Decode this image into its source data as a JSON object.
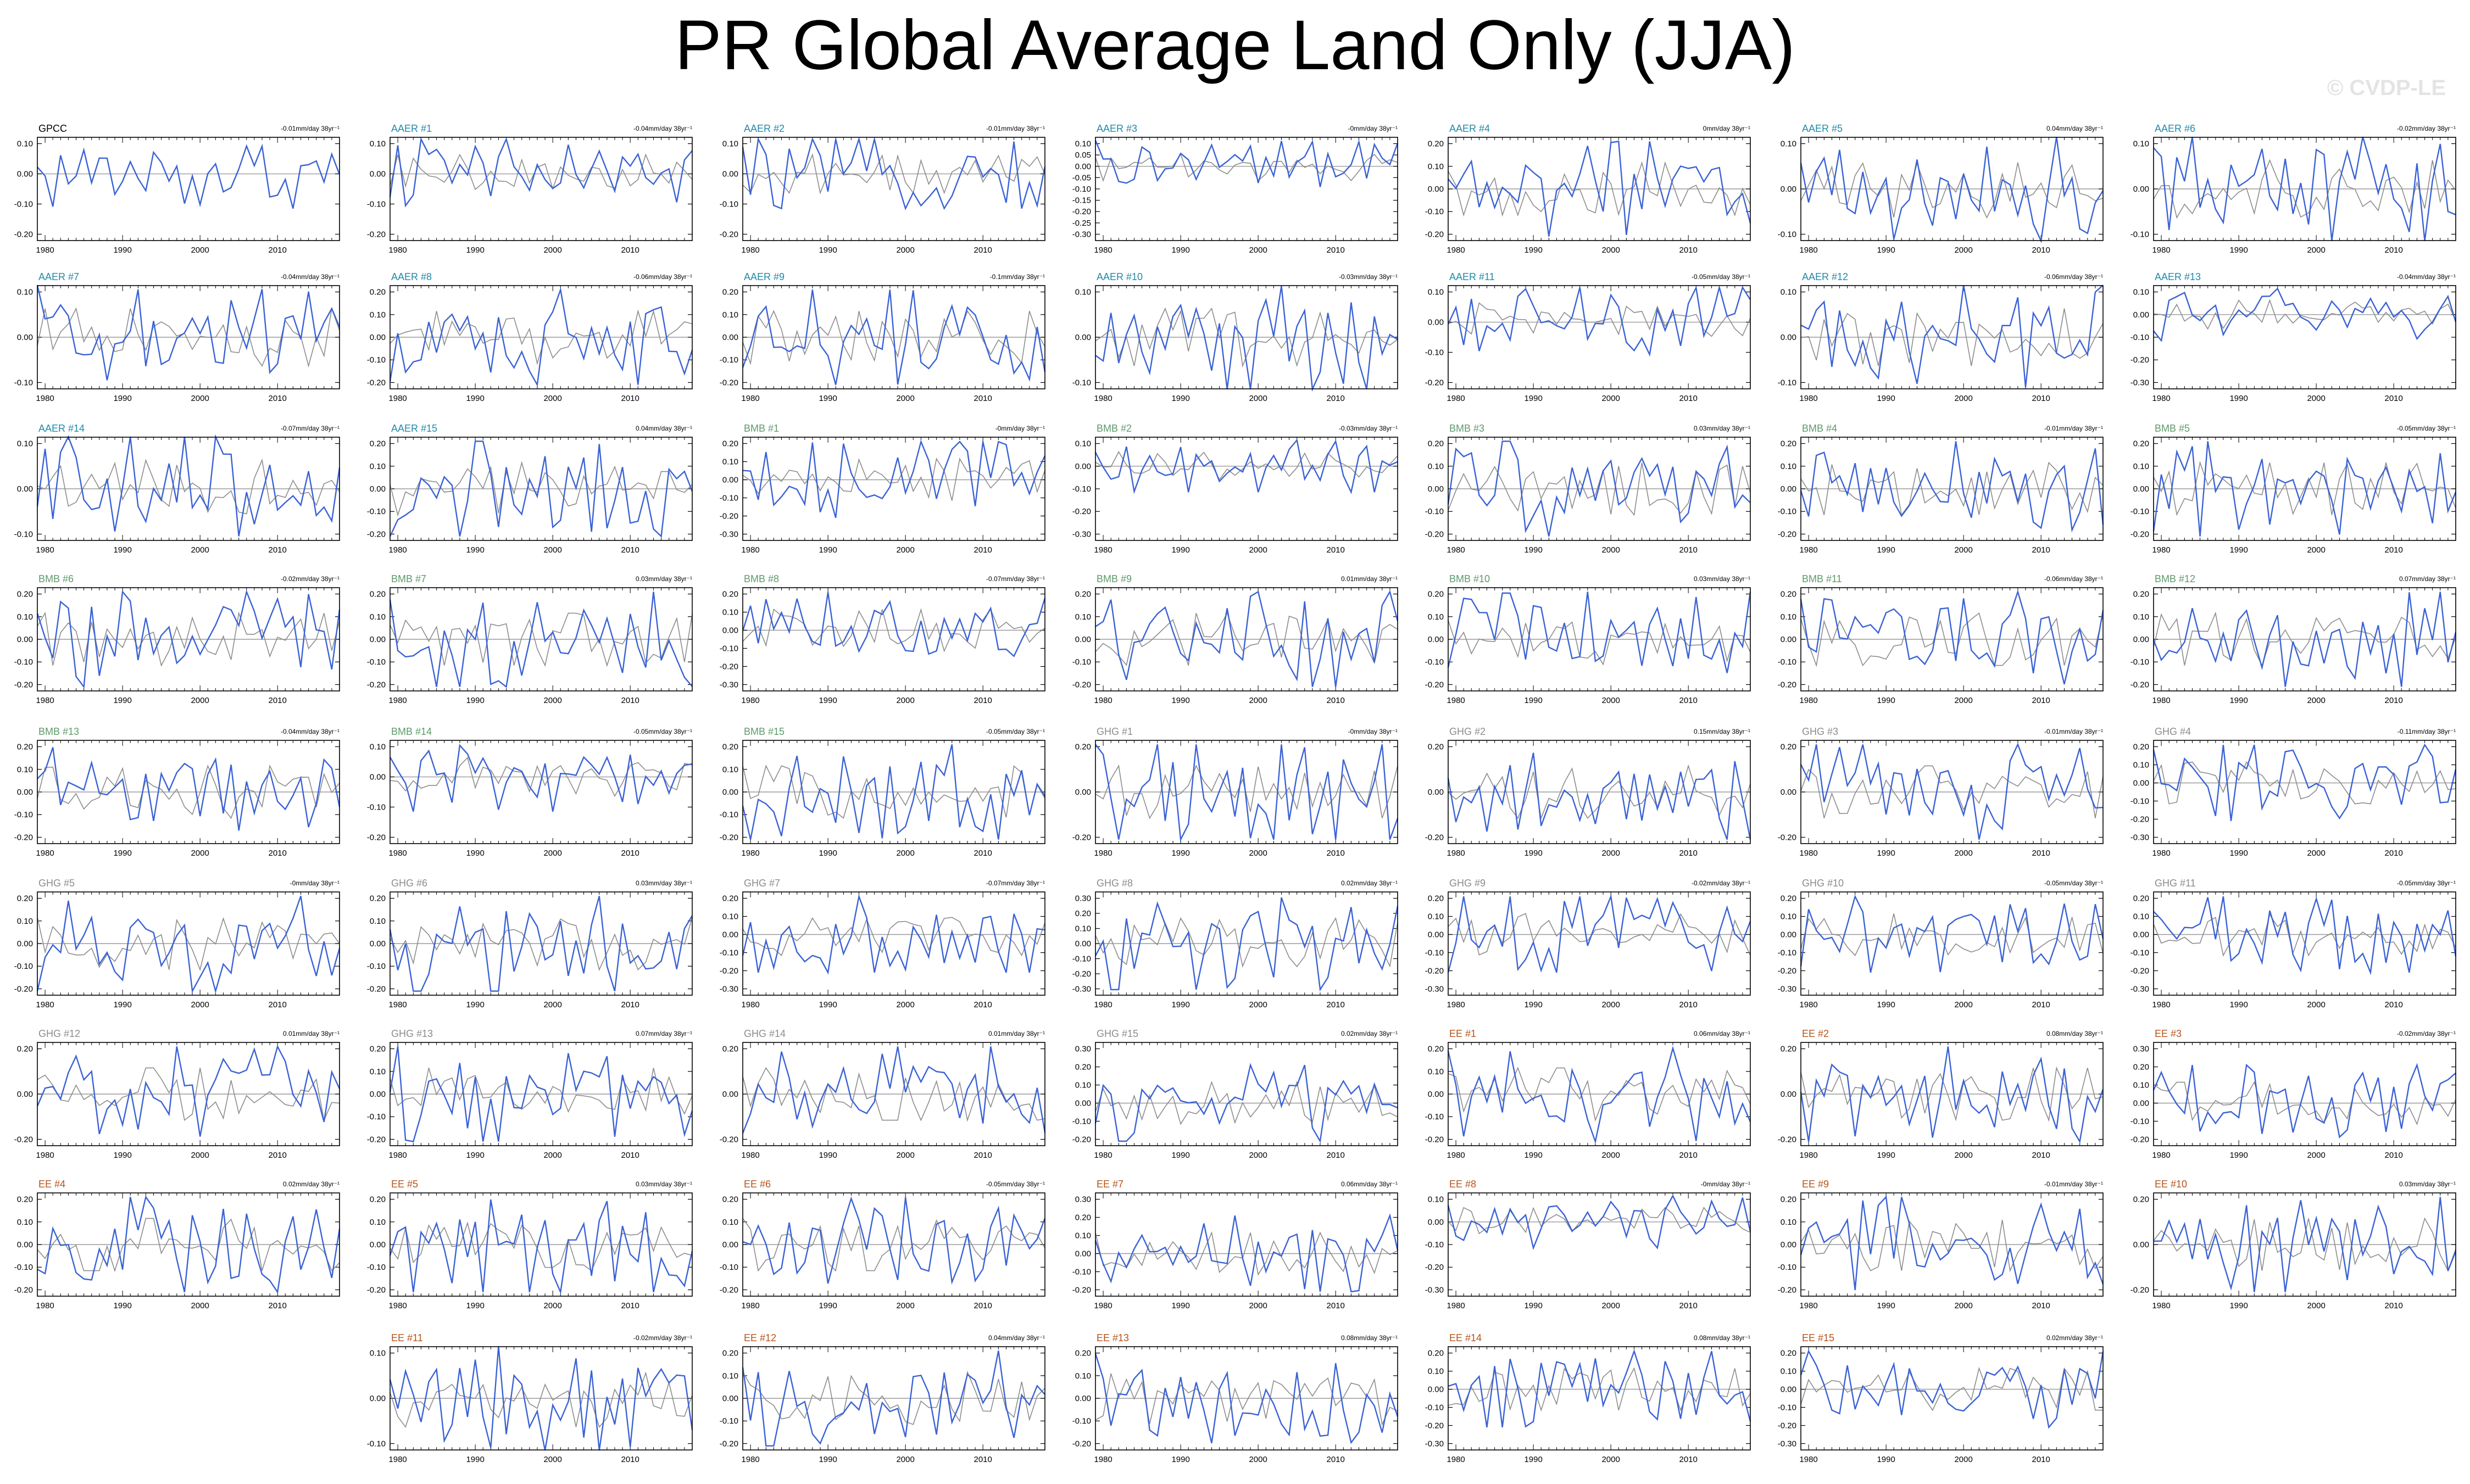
{
  "title": "PR Global Average Land Only (JJA)",
  "watermark": "© CVDP-LE",
  "colors": {
    "obs_line": "#3a62d6",
    "ens_mean_line": "#8c8c8c",
    "GPCC": "#000000",
    "AAER": "#1f8aaa",
    "BMB": "#5e9a6a",
    "GHG": "#8c8c8c",
    "EE": "#b5541c"
  },
  "chart_data": {
    "type": "line",
    "x_ticks": [
      1980,
      1990,
      2000,
      2010
    ],
    "x_range": [
      1979,
      2018
    ],
    "panels": [
      {
        "label": "GPCC",
        "group": "GPCC",
        "trend": "-0.01mm/day 38yr⁻¹",
        "yticks": [
          0.1,
          0,
          -0.1,
          -0.2
        ],
        "show_ens": false
      },
      {
        "label": "AAER #1",
        "group": "AAER",
        "trend": "-0.04mm/day 38yr⁻¹",
        "yticks": [
          0.1,
          0,
          -0.1,
          -0.2
        ],
        "show_ens": true
      },
      {
        "label": "AAER #2",
        "group": "AAER",
        "trend": "-0.01mm/day 38yr⁻¹",
        "yticks": [
          0.1,
          0,
          -0.1,
          -0.2
        ],
        "show_ens": true
      },
      {
        "label": "AAER #3",
        "group": "AAER",
        "trend": "-0mm/day 38yr⁻¹",
        "yticks": [
          0.1,
          0.05,
          0,
          -0.05,
          -0.1,
          -0.15,
          -0.2,
          -0.25,
          -0.3
        ],
        "show_ens": true
      },
      {
        "label": "AAER #4",
        "group": "AAER",
        "trend": "0mm/day 38yr⁻¹",
        "yticks": [
          0.2,
          0.1,
          0,
          -0.1,
          -0.2
        ],
        "show_ens": true
      },
      {
        "label": "AAER #5",
        "group": "AAER",
        "trend": "0.04mm/day 38yr⁻¹",
        "yticks": [
          0.1,
          0,
          -0.1
        ],
        "show_ens": true
      },
      {
        "label": "AAER #6",
        "group": "AAER",
        "trend": "-0.02mm/day 38yr⁻¹",
        "yticks": [
          0.1,
          0,
          -0.1
        ],
        "show_ens": true
      },
      {
        "label": "AAER #7",
        "group": "AAER",
        "trend": "-0.04mm/day 38yr⁻¹",
        "yticks": [
          0.1,
          0,
          -0.1
        ],
        "show_ens": true
      },
      {
        "label": "AAER #8",
        "group": "AAER",
        "trend": "-0.06mm/day 38yr⁻¹",
        "yticks": [
          0.2,
          0.1,
          0,
          -0.1,
          -0.2
        ],
        "show_ens": true
      },
      {
        "label": "AAER #9",
        "group": "AAER",
        "trend": "-0.1mm/day 38yr⁻¹",
        "yticks": [
          0.2,
          0.1,
          0,
          -0.1,
          -0.2
        ],
        "show_ens": true
      },
      {
        "label": "AAER #10",
        "group": "AAER",
        "trend": "-0.03mm/day 38yr⁻¹",
        "yticks": [
          0.1,
          0,
          -0.1
        ],
        "show_ens": true
      },
      {
        "label": "AAER #11",
        "group": "AAER",
        "trend": "-0.05mm/day 38yr⁻¹",
        "yticks": [
          0.1,
          0,
          -0.1,
          -0.2
        ],
        "show_ens": true
      },
      {
        "label": "AAER #12",
        "group": "AAER",
        "trend": "-0.06mm/day 38yr⁻¹",
        "yticks": [
          0.1,
          0,
          -0.1
        ],
        "show_ens": true
      },
      {
        "label": "AAER #13",
        "group": "AAER",
        "trend": "-0.04mm/day 38yr⁻¹",
        "yticks": [
          0.1,
          0,
          -0.1,
          -0.2,
          -0.3
        ],
        "show_ens": true
      },
      {
        "label": "AAER #14",
        "group": "AAER",
        "trend": "-0.07mm/day 38yr⁻¹",
        "yticks": [
          0.1,
          0,
          -0.1
        ],
        "show_ens": true
      },
      {
        "label": "AAER #15",
        "group": "AAER",
        "trend": "0.04mm/day 38yr⁻¹",
        "yticks": [
          0.2,
          0.1,
          0,
          -0.1,
          -0.2
        ],
        "show_ens": true
      },
      {
        "label": "BMB #1",
        "group": "BMB",
        "trend": "-0mm/day 38yr⁻¹",
        "yticks": [
          0.2,
          0.1,
          0,
          -0.1,
          -0.2,
          -0.3
        ],
        "show_ens": true
      },
      {
        "label": "BMB #2",
        "group": "BMB",
        "trend": "-0.03mm/day 38yr⁻¹",
        "yticks": [
          0.1,
          0,
          -0.1,
          -0.2,
          -0.3
        ],
        "show_ens": true
      },
      {
        "label": "BMB #3",
        "group": "BMB",
        "trend": "0.03mm/day 38yr⁻¹",
        "yticks": [
          0.2,
          0.1,
          0,
          -0.1,
          -0.2
        ],
        "show_ens": true
      },
      {
        "label": "BMB #4",
        "group": "BMB",
        "trend": "-0.01mm/day 38yr⁻¹",
        "yticks": [
          0.2,
          0.1,
          0,
          -0.1,
          -0.2
        ],
        "show_ens": true
      },
      {
        "label": "BMB #5",
        "group": "BMB",
        "trend": "-0.05mm/day 38yr⁻¹",
        "yticks": [
          0.2,
          0.1,
          0,
          -0.1,
          -0.2
        ],
        "show_ens": true
      },
      {
        "label": "BMB #6",
        "group": "BMB",
        "trend": "-0.02mm/day 38yr⁻¹",
        "yticks": [
          0.2,
          0.1,
          0,
          -0.1,
          -0.2
        ],
        "show_ens": true
      },
      {
        "label": "BMB #7",
        "group": "BMB",
        "trend": "0.03mm/day 38yr⁻¹",
        "yticks": [
          0.2,
          0.1,
          0,
          -0.1,
          -0.2
        ],
        "show_ens": true
      },
      {
        "label": "BMB #8",
        "group": "BMB",
        "trend": "-0.07mm/day 38yr⁻¹",
        "yticks": [
          0.2,
          0.1,
          0,
          -0.1,
          -0.2,
          -0.3
        ],
        "show_ens": true
      },
      {
        "label": "BMB #9",
        "group": "BMB",
        "trend": "0.01mm/day 38yr⁻¹",
        "yticks": [
          0.2,
          0.1,
          0,
          -0.1,
          -0.2
        ],
        "show_ens": true
      },
      {
        "label": "BMB #10",
        "group": "BMB",
        "trend": "0.03mm/day 38yr⁻¹",
        "yticks": [
          0.2,
          0.1,
          0,
          -0.1,
          -0.2
        ],
        "show_ens": true
      },
      {
        "label": "BMB #11",
        "group": "BMB",
        "trend": "-0.06mm/day 38yr⁻¹",
        "yticks": [
          0.2,
          0.1,
          0,
          -0.1,
          -0.2
        ],
        "show_ens": true
      },
      {
        "label": "BMB #12",
        "group": "BMB",
        "trend": "0.07mm/day 38yr⁻¹",
        "yticks": [
          0.2,
          0.1,
          0,
          -0.1,
          -0.2
        ],
        "show_ens": true
      },
      {
        "label": "BMB #13",
        "group": "BMB",
        "trend": "-0.04mm/day 38yr⁻¹",
        "yticks": [
          0.2,
          0.1,
          0,
          -0.1,
          -0.2
        ],
        "show_ens": true
      },
      {
        "label": "BMB #14",
        "group": "BMB",
        "trend": "-0.05mm/day 38yr⁻¹",
        "yticks": [
          0.1,
          0,
          -0.1,
          -0.2
        ],
        "show_ens": true
      },
      {
        "label": "BMB #15",
        "group": "BMB",
        "trend": "-0.05mm/day 38yr⁻¹",
        "yticks": [
          0.2,
          0.1,
          0,
          -0.1,
          -0.2
        ],
        "show_ens": true
      },
      {
        "label": "GHG #1",
        "group": "GHG",
        "trend": "-0mm/day 38yr⁻¹",
        "yticks": [
          0.2,
          0,
          -0.2
        ],
        "show_ens": true
      },
      {
        "label": "GHG #2",
        "group": "GHG",
        "trend": "0.15mm/day 38yr⁻¹",
        "yticks": [
          0.2,
          0,
          -0.2
        ],
        "show_ens": true
      },
      {
        "label": "GHG #3",
        "group": "GHG",
        "trend": "-0.01mm/day 38yr⁻¹",
        "yticks": [
          0.2,
          0,
          -0.2
        ],
        "show_ens": true
      },
      {
        "label": "GHG #4",
        "group": "GHG",
        "trend": "-0.11mm/day 38yr⁻¹",
        "yticks": [
          0.2,
          0.1,
          0,
          -0.1,
          -0.2,
          -0.3
        ],
        "show_ens": true
      },
      {
        "label": "GHG #5",
        "group": "GHG",
        "trend": "-0mm/day 38yr⁻¹",
        "yticks": [
          0.2,
          0.1,
          0,
          -0.1,
          -0.2
        ],
        "show_ens": true
      },
      {
        "label": "GHG #6",
        "group": "GHG",
        "trend": "0.03mm/day 38yr⁻¹",
        "yticks": [
          0.2,
          0.1,
          0,
          -0.1,
          -0.2
        ],
        "show_ens": true
      },
      {
        "label": "GHG #7",
        "group": "GHG",
        "trend": "-0.07mm/day 38yr⁻¹",
        "yticks": [
          0.2,
          0.1,
          0,
          -0.1,
          -0.2,
          -0.3
        ],
        "show_ens": true
      },
      {
        "label": "GHG #8",
        "group": "GHG",
        "trend": "0.02mm/day 38yr⁻¹",
        "yticks": [
          0.3,
          0.2,
          0.1,
          0,
          -0.1,
          -0.2,
          -0.3
        ],
        "show_ens": true
      },
      {
        "label": "GHG #9",
        "group": "GHG",
        "trend": "-0.02mm/day 38yr⁻¹",
        "yticks": [
          0.2,
          0.1,
          0,
          -0.1,
          -0.2,
          -0.3
        ],
        "show_ens": true
      },
      {
        "label": "GHG #10",
        "group": "GHG",
        "trend": "-0.05mm/day 38yr⁻¹",
        "yticks": [
          0.2,
          0.1,
          0,
          -0.1,
          -0.2,
          -0.3
        ],
        "show_ens": true
      },
      {
        "label": "GHG #11",
        "group": "GHG",
        "trend": "-0.05mm/day 38yr⁻¹",
        "yticks": [
          0.2,
          0.1,
          0,
          -0.1,
          -0.2,
          -0.3
        ],
        "show_ens": true
      },
      {
        "label": "GHG #12",
        "group": "GHG",
        "trend": "0.01mm/day 38yr⁻¹",
        "yticks": [
          0.2,
          0,
          -0.2
        ],
        "show_ens": true
      },
      {
        "label": "GHG #13",
        "group": "GHG",
        "trend": "0.07mm/day 38yr⁻¹",
        "yticks": [
          0.2,
          0.1,
          0,
          -0.1,
          -0.2
        ],
        "show_ens": true
      },
      {
        "label": "GHG #14",
        "group": "GHG",
        "trend": "0.01mm/day 38yr⁻¹",
        "yticks": [
          0.2,
          0,
          -0.2
        ],
        "show_ens": true
      },
      {
        "label": "GHG #15",
        "group": "GHG",
        "trend": "0.02mm/day 38yr⁻¹",
        "yticks": [
          0.3,
          0.2,
          0.1,
          0,
          -0.1,
          -0.2
        ],
        "show_ens": true
      },
      {
        "label": "EE #1",
        "group": "EE",
        "trend": "0.06mm/day 38yr⁻¹",
        "yticks": [
          0.2,
          0.1,
          0,
          -0.1,
          -0.2
        ],
        "show_ens": true
      },
      {
        "label": "EE #2",
        "group": "EE",
        "trend": "0.08mm/day 38yr⁻¹",
        "yticks": [
          0.2,
          0,
          -0.2
        ],
        "show_ens": true
      },
      {
        "label": "EE #3",
        "group": "EE",
        "trend": "-0.02mm/day 38yr⁻¹",
        "yticks": [
          0.3,
          0.2,
          0.1,
          0,
          -0.1,
          -0.2
        ],
        "show_ens": true
      },
      {
        "label": "EE #4",
        "group": "EE",
        "trend": "0.02mm/day 38yr⁻¹",
        "yticks": [
          0.2,
          0.1,
          0,
          -0.1,
          -0.2
        ],
        "show_ens": true
      },
      {
        "label": "EE #5",
        "group": "EE",
        "trend": "0.03mm/day 38yr⁻¹",
        "yticks": [
          0.2,
          0.1,
          0,
          -0.1,
          -0.2
        ],
        "show_ens": true
      },
      {
        "label": "EE #6",
        "group": "EE",
        "trend": "-0.05mm/day 38yr⁻¹",
        "yticks": [
          0.2,
          0.1,
          0,
          -0.1,
          -0.2
        ],
        "show_ens": true
      },
      {
        "label": "EE #7",
        "group": "EE",
        "trend": "0.06mm/day 38yr⁻¹",
        "yticks": [
          0.3,
          0.2,
          0.1,
          0,
          -0.1,
          -0.2
        ],
        "show_ens": true
      },
      {
        "label": "EE #8",
        "group": "EE",
        "trend": "-0mm/day 38yr⁻¹",
        "yticks": [
          0.1,
          0,
          -0.1,
          -0.2,
          -0.3
        ],
        "show_ens": true
      },
      {
        "label": "EE #9",
        "group": "EE",
        "trend": "-0.01mm/day 38yr⁻¹",
        "yticks": [
          0.2,
          0.1,
          0,
          -0.1,
          -0.2
        ],
        "show_ens": true
      },
      {
        "label": "EE #10",
        "group": "EE",
        "trend": "0.03mm/day 38yr⁻¹",
        "yticks": [
          0.2,
          0,
          -0.2
        ],
        "show_ens": true
      },
      {
        "label": "EE #11",
        "group": "EE",
        "trend": "-0.02mm/day 38yr⁻¹",
        "yticks": [
          0.1,
          0,
          -0.1
        ],
        "show_ens": true
      },
      {
        "label": "EE #12",
        "group": "EE",
        "trend": "0.04mm/day 38yr⁻¹",
        "yticks": [
          0.2,
          0.1,
          0,
          -0.1,
          -0.2
        ],
        "show_ens": true
      },
      {
        "label": "EE #13",
        "group": "EE",
        "trend": "0.08mm/day 38yr⁻¹",
        "yticks": [
          0.2,
          0.1,
          0,
          -0.1,
          -0.2
        ],
        "show_ens": true
      },
      {
        "label": "EE #14",
        "group": "EE",
        "trend": "0.08mm/day 38yr⁻¹",
        "yticks": [
          0.2,
          0.1,
          0,
          -0.1,
          -0.2,
          -0.3
        ],
        "show_ens": true
      },
      {
        "label": "EE #15",
        "group": "EE",
        "trend": "0.02mm/day 38yr⁻¹",
        "yticks": [
          0.2,
          0.1,
          0,
          -0.1,
          -0.2,
          -0.3
        ],
        "show_ens": true
      }
    ]
  }
}
